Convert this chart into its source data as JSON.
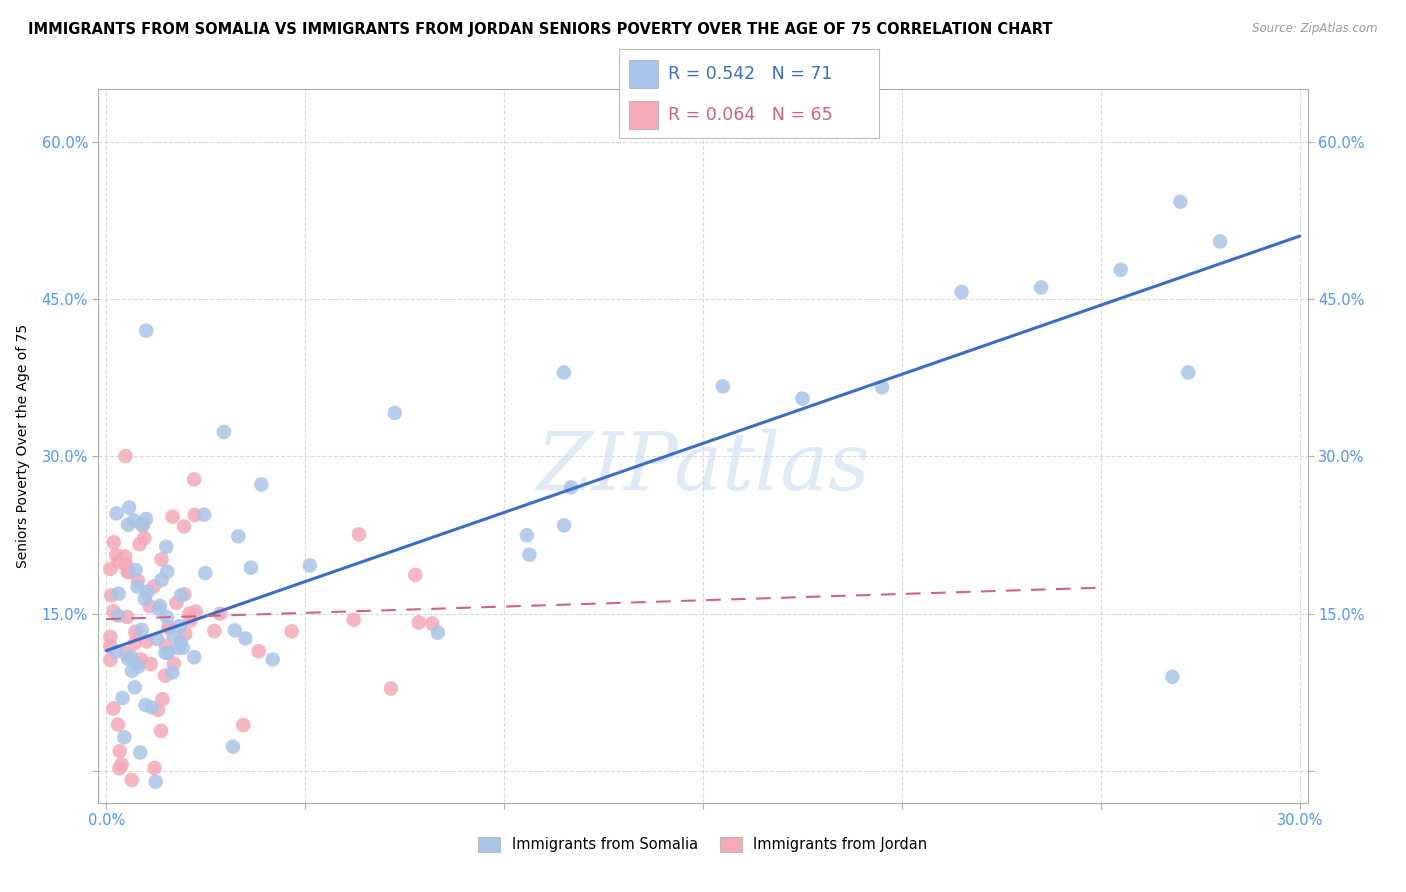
{
  "title": "IMMIGRANTS FROM SOMALIA VS IMMIGRANTS FROM JORDAN SENIORS POVERTY OVER THE AGE OF 75 CORRELATION CHART",
  "source": "Source: ZipAtlas.com",
  "ylabel": "Seniors Poverty Over the Age of 75",
  "xlim": [
    -0.002,
    0.302
  ],
  "ylim": [
    -0.03,
    0.65
  ],
  "ytick_vals": [
    0.0,
    0.15,
    0.3,
    0.45,
    0.6
  ],
  "xtick_vals": [
    0.0,
    0.05,
    0.1,
    0.15,
    0.2,
    0.25,
    0.3
  ],
  "somalia_color": "#a8c4e8",
  "jordan_color": "#f4a8b8",
  "somalia_line_color": "#3a6cc8",
  "jordan_line_color": "#d46080",
  "somalia_R": 0.542,
  "somalia_N": 71,
  "jordan_R": 0.064,
  "jordan_N": 65,
  "watermark": "ZIPatlas",
  "somalia_trend_x": [
    0.0,
    0.3
  ],
  "somalia_trend_y": [
    0.115,
    0.51
  ],
  "jordan_trend_x": [
    0.0,
    0.25
  ],
  "jordan_trend_y": [
    0.145,
    0.175
  ],
  "background_color": "#ffffff",
  "grid_color": "#d8d8d8",
  "title_fontsize": 10.5,
  "axis_label_fontsize": 10,
  "tick_fontsize": 10.5
}
